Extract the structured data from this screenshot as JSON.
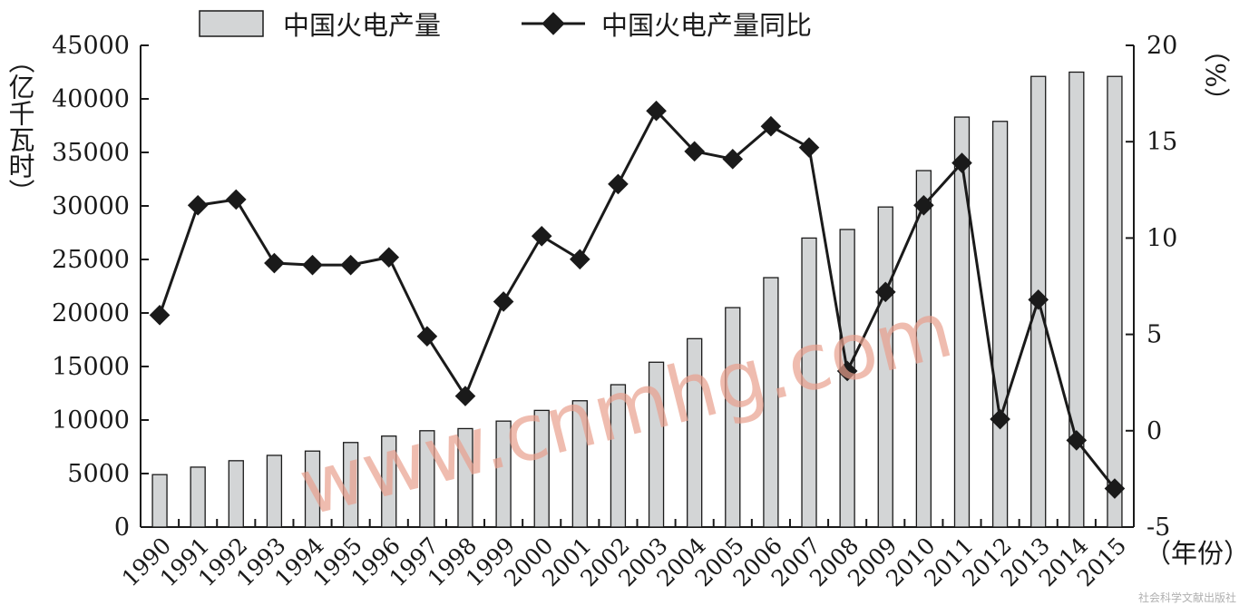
{
  "chart_data": {
    "type": "bar+line",
    "categories": [
      "1990",
      "1991",
      "1992",
      "1993",
      "1994",
      "1995",
      "1996",
      "1997",
      "1998",
      "1999",
      "2000",
      "2001",
      "2002",
      "2003",
      "2004",
      "2005",
      "2006",
      "2007",
      "2008",
      "2009",
      "2010",
      "2011",
      "2012",
      "2013",
      "2014",
      "2015"
    ],
    "series": [
      {
        "name": "中国火电产量",
        "type": "bar",
        "axis": "left",
        "values": [
          4900,
          5600,
          6200,
          6700,
          7100,
          7900,
          8500,
          9000,
          9200,
          9900,
          10900,
          11800,
          13300,
          15400,
          17600,
          20500,
          23300,
          27000,
          27800,
          29900,
          33300,
          38300,
          37900,
          42100,
          42500,
          42100
        ]
      },
      {
        "name": "中国火电产量同比",
        "type": "line",
        "axis": "right",
        "values": [
          6.0,
          11.7,
          12.0,
          8.7,
          8.6,
          8.6,
          9.0,
          4.9,
          1.8,
          6.7,
          10.1,
          8.9,
          12.8,
          16.6,
          14.5,
          14.1,
          15.8,
          14.7,
          3.1,
          7.2,
          11.7,
          13.9,
          0.6,
          6.8,
          -0.5,
          -3.0
        ]
      }
    ],
    "y_left": {
      "label": "（亿千瓦时）",
      "min": 0,
      "max": 45000,
      "ticks": [
        0,
        5000,
        10000,
        15000,
        20000,
        25000,
        30000,
        35000,
        40000,
        45000
      ]
    },
    "y_right": {
      "label": "（%）",
      "min": -5,
      "max": 20,
      "ticks": [
        -5,
        0,
        5,
        10,
        15,
        20
      ]
    },
    "x_label": "（年份）",
    "legend": {
      "position": "top"
    },
    "grid": false,
    "colors": {
      "bar_fill": "#d3d5d6",
      "bar_stroke": "#1a1a1a",
      "line": "#1a1a1a"
    }
  },
  "watermark": "www.cnmhg.com",
  "publisher": "社会科学文献出版社"
}
